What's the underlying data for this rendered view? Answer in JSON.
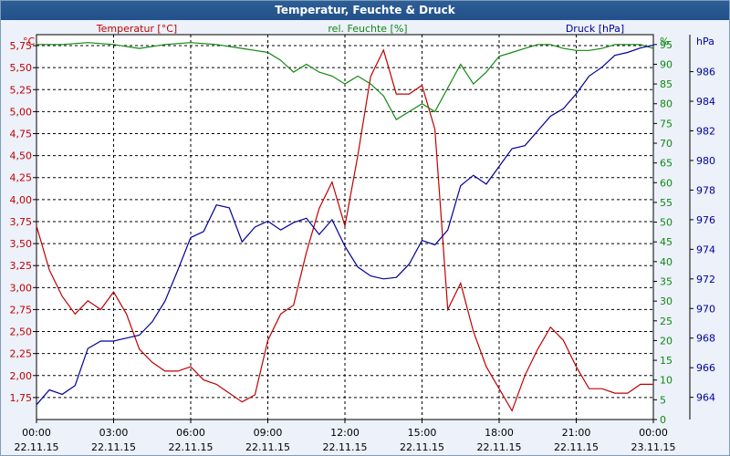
{
  "window": {
    "title": "Temperatur, Feuchte & Druck"
  },
  "colors": {
    "temperature": "#C00000",
    "humidity": "#118811",
    "pressure": "#000099",
    "grid": "#000000",
    "plot_bg": "#FFFFFF"
  },
  "chart_data": {
    "type": "line",
    "title": "Temperatur, Feuchte & Druck",
    "x_ticks": [
      {
        "time": "00:00",
        "date": "22.11.15"
      },
      {
        "time": "03:00",
        "date": "22.11.15"
      },
      {
        "time": "06:00",
        "date": "22.11.15"
      },
      {
        "time": "09:00",
        "date": "22.11.15"
      },
      {
        "time": "12:00",
        "date": "22.11.15"
      },
      {
        "time": "15:00",
        "date": "22.11.15"
      },
      {
        "time": "18:00",
        "date": "22.11.15"
      },
      {
        "time": "21:00",
        "date": "22.11.15"
      },
      {
        "time": "00:00",
        "date": "23.11.15"
      }
    ],
    "xlim": [
      0,
      24
    ],
    "axes": {
      "temperature": {
        "label": "Temperatur [°C]",
        "unit": "°C",
        "ylim": [
          1.5,
          5.875
        ],
        "ticks": [
          "1,75",
          "2,00",
          "2,25",
          "2,50",
          "2,75",
          "3,00",
          "3,25",
          "3,50",
          "3,75",
          "4,00",
          "4,25",
          "4,50",
          "4,75",
          "5,00",
          "5,25",
          "5,50",
          "5,75"
        ]
      },
      "humidity": {
        "label": "rel. Feuchte [%]",
        "unit": "%",
        "ylim": [
          0,
          97.5
        ],
        "ticks": [
          "0",
          "5",
          "10",
          "15",
          "20",
          "25",
          "30",
          "35",
          "40",
          "45",
          "50",
          "55",
          "60",
          "65",
          "70",
          "75",
          "80",
          "85",
          "90",
          "95"
        ]
      },
      "pressure": {
        "label": "Druck [hPa]",
        "unit": "hPa",
        "ylim": [
          962.5,
          988.5
        ],
        "ticks": [
          "964",
          "966",
          "968",
          "970",
          "972",
          "974",
          "976",
          "978",
          "980",
          "982",
          "984",
          "986"
        ]
      }
    },
    "series": [
      {
        "name": "Temperatur",
        "axis": "temperature",
        "x": [
          0,
          0.5,
          1,
          1.5,
          2,
          2.5,
          3,
          3.5,
          4,
          4.5,
          5,
          5.5,
          6,
          6.5,
          7,
          7.5,
          8,
          8.5,
          9,
          9.5,
          10,
          10.5,
          11,
          11.5,
          12,
          12.5,
          13,
          13.5,
          14,
          14.5,
          15,
          15.5,
          16,
          16.5,
          17,
          17.5,
          18,
          18.5,
          19,
          19.5,
          20,
          20.5,
          21,
          21.5,
          22,
          22.5,
          23,
          23.5,
          24
        ],
        "values": [
          3.7,
          3.2,
          2.9,
          2.7,
          2.85,
          2.75,
          2.95,
          2.7,
          2.3,
          2.15,
          2.05,
          2.05,
          2.1,
          1.95,
          1.9,
          1.8,
          1.7,
          1.78,
          2.4,
          2.7,
          2.8,
          3.4,
          3.9,
          4.2,
          3.7,
          4.5,
          5.4,
          5.7,
          5.2,
          5.2,
          5.3,
          4.8,
          2.75,
          3.05,
          2.5,
          2.1,
          1.85,
          1.6,
          2.0,
          2.3,
          2.55,
          2.4,
          2.1,
          1.85,
          1.85,
          1.8,
          1.8,
          1.9,
          1.9
        ]
      },
      {
        "name": "rel. Feuchte",
        "axis": "humidity",
        "x": [
          0,
          1,
          2,
          3,
          4,
          5,
          6,
          7,
          8,
          8.5,
          9,
          9.5,
          10,
          10.5,
          11,
          11.5,
          12,
          12.5,
          13,
          13.5,
          14,
          14.5,
          15,
          15.5,
          16,
          16.5,
          17,
          17.5,
          18,
          18.5,
          19,
          19.5,
          20,
          20.5,
          21,
          21.5,
          22,
          22.5,
          23,
          23.5,
          24
        ],
        "values": [
          95,
          95,
          95.5,
          95,
          94,
          95,
          95.5,
          95,
          94,
          93.5,
          93,
          91,
          88,
          90,
          88,
          87,
          85,
          87,
          85,
          82,
          76,
          78,
          80,
          78,
          84,
          90,
          85,
          88,
          92,
          93,
          94,
          95,
          95,
          94,
          93.5,
          93.5,
          94,
          95,
          95,
          95,
          94
        ]
      },
      {
        "name": "Druck",
        "axis": "pressure",
        "x": [
          0,
          0.5,
          1,
          1.5,
          2,
          2.5,
          3,
          3.5,
          4,
          4.5,
          5,
          5.5,
          6,
          6.5,
          7,
          7.5,
          8,
          8.5,
          9,
          9.5,
          10,
          10.5,
          11,
          11.5,
          12,
          12.5,
          13,
          13.5,
          14,
          14.5,
          15,
          15.5,
          16,
          16.5,
          17,
          17.5,
          18,
          18.5,
          19,
          19.5,
          20,
          20.5,
          21,
          21.5,
          22,
          22.5,
          23,
          23.5,
          24
        ],
        "values": [
          963.5,
          964.5,
          964.2,
          964.8,
          967.3,
          967.8,
          967.8,
          968,
          968.2,
          969.1,
          970.5,
          972.6,
          974.8,
          975.2,
          977,
          976.8,
          974.5,
          975.5,
          975.9,
          975.3,
          975.8,
          976.1,
          975,
          976,
          974.2,
          972.8,
          972.2,
          972,
          972.1,
          973,
          974.6,
          974.3,
          975.3,
          978.3,
          979,
          978.4,
          979.6,
          980.8,
          981,
          982,
          983,
          983.5,
          984.5,
          985.7,
          986.3,
          987.1,
          987.3,
          987.6,
          987.8
        ]
      }
    ]
  }
}
